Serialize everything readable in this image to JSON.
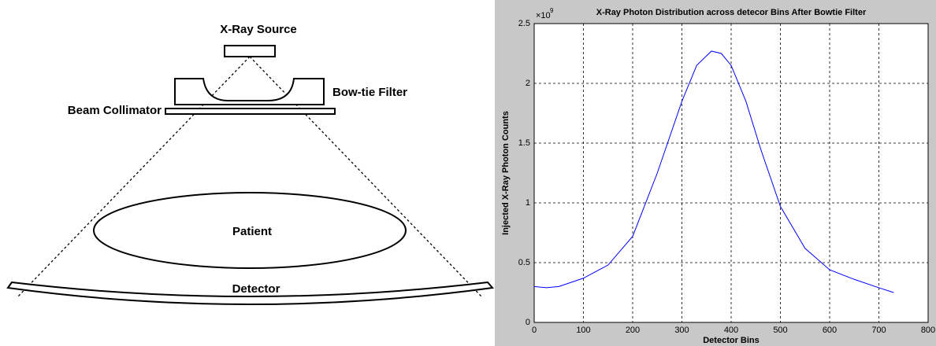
{
  "diagram": {
    "source": "X-Ray Source",
    "filter": "Bow-tie Filter",
    "collimator": "Beam Collimator",
    "patient": "Patient",
    "detector": "Detector"
  },
  "chart_data": {
    "type": "line",
    "title": "X-Ray Photon  Distribution across detecor Bins After Bowtie Filter",
    "x_label": "Detector Bins",
    "y_label": "Injected X-Ray Photon Counts",
    "y_multiplier": {
      "base": "×10",
      "exponent": "9"
    },
    "x": [
      0,
      25,
      50,
      100,
      150,
      200,
      250,
      300,
      330,
      360,
      380,
      400,
      430,
      460,
      500,
      550,
      600,
      650,
      700,
      730
    ],
    "values": [
      0.3,
      0.29,
      0.3,
      0.37,
      0.48,
      0.72,
      1.25,
      1.85,
      2.15,
      2.27,
      2.25,
      2.15,
      1.85,
      1.45,
      0.97,
      0.62,
      0.44,
      0.36,
      0.29,
      0.25
    ],
    "color": "#0000ff",
    "xlim": [
      0,
      800
    ],
    "xticks": [
      0,
      100,
      200,
      300,
      400,
      500,
      600,
      700,
      800
    ],
    "ylim": [
      0,
      2.5
    ],
    "yticks": [
      0,
      0.5,
      1,
      1.5,
      2,
      2.5
    ],
    "grid": true
  }
}
